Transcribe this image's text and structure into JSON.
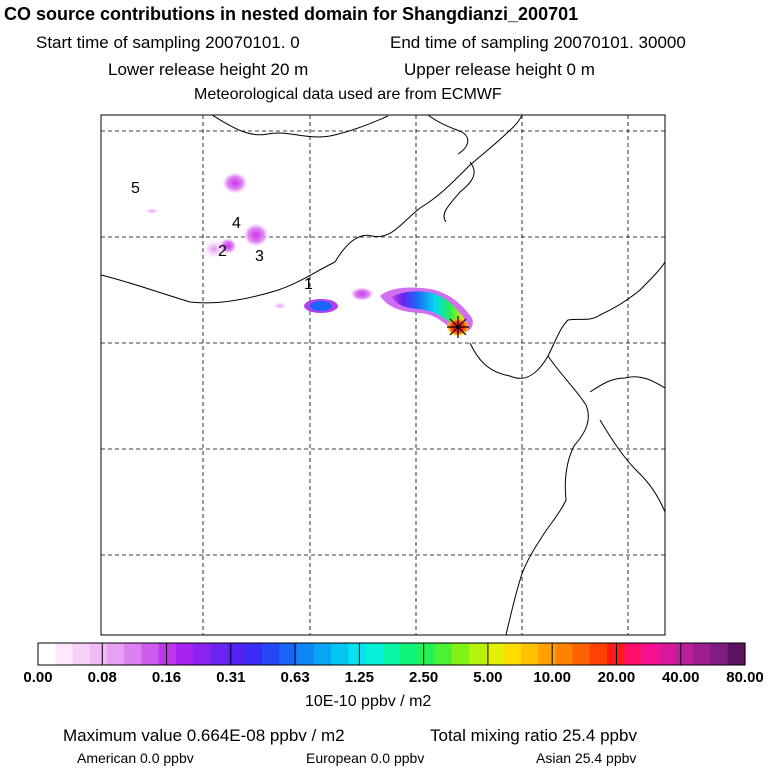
{
  "header": {
    "title": "CO  source contributions in nested domain for Shangdianzi_200701",
    "start_label": "Start time of sampling 20070101.     0",
    "end_label": "End time of sampling 20070101. 30000",
    "lower_release": "Lower release height   20 m",
    "upper_release": "Upper release height    0 m",
    "met_data": "Meteorological data used are from ECMWF"
  },
  "map": {
    "source_labels": [
      "1",
      "2",
      "3",
      "4",
      "5"
    ],
    "receptor_marker": "red-star-icon",
    "grid": true
  },
  "colorbar": {
    "tick_labels": [
      "0.00",
      "0.08",
      "0.16",
      "0.31",
      "0.63",
      "1.25",
      "2.50",
      "5.00",
      "10.00",
      "20.00",
      "40.00",
      "80.00"
    ],
    "units": "10E-10 ppbv / m2",
    "colors": [
      "#ffffff",
      "#fbe8fb",
      "#f6d2f8",
      "#f0bbf6",
      "#e8a0f3",
      "#dd80f0",
      "#cf5cee",
      "#bf37ec",
      "#a622ee",
      "#8a22f0",
      "#6d24f3",
      "#5124f5",
      "#3a2cf6",
      "#2646f7",
      "#1a64f7",
      "#0f86f6",
      "#08a6f5",
      "#05c6f3",
      "#05e3f0",
      "#06f2d8",
      "#08f5a6",
      "#10f47a",
      "#22f254",
      "#4cf232",
      "#82f216",
      "#b7f20a",
      "#e2f005",
      "#ffdd00",
      "#ffc000",
      "#ffa200",
      "#ff8200",
      "#ff6200",
      "#ff4000",
      "#ff1a1a",
      "#ff1068",
      "#f4108e",
      "#d8189a",
      "#bb1e98",
      "#9c1e8e",
      "#7e1c80",
      "#5c1460"
    ]
  },
  "summary": {
    "max_value": "Maximum value  0.664E-08 ppbv / m2",
    "total_mixing": "Total mixing ratio      25.4 ppbv",
    "american": "American        0.0 ppbv",
    "european": "European        0.0 ppbv",
    "asian": "Asian        25.4 ppbv"
  }
}
